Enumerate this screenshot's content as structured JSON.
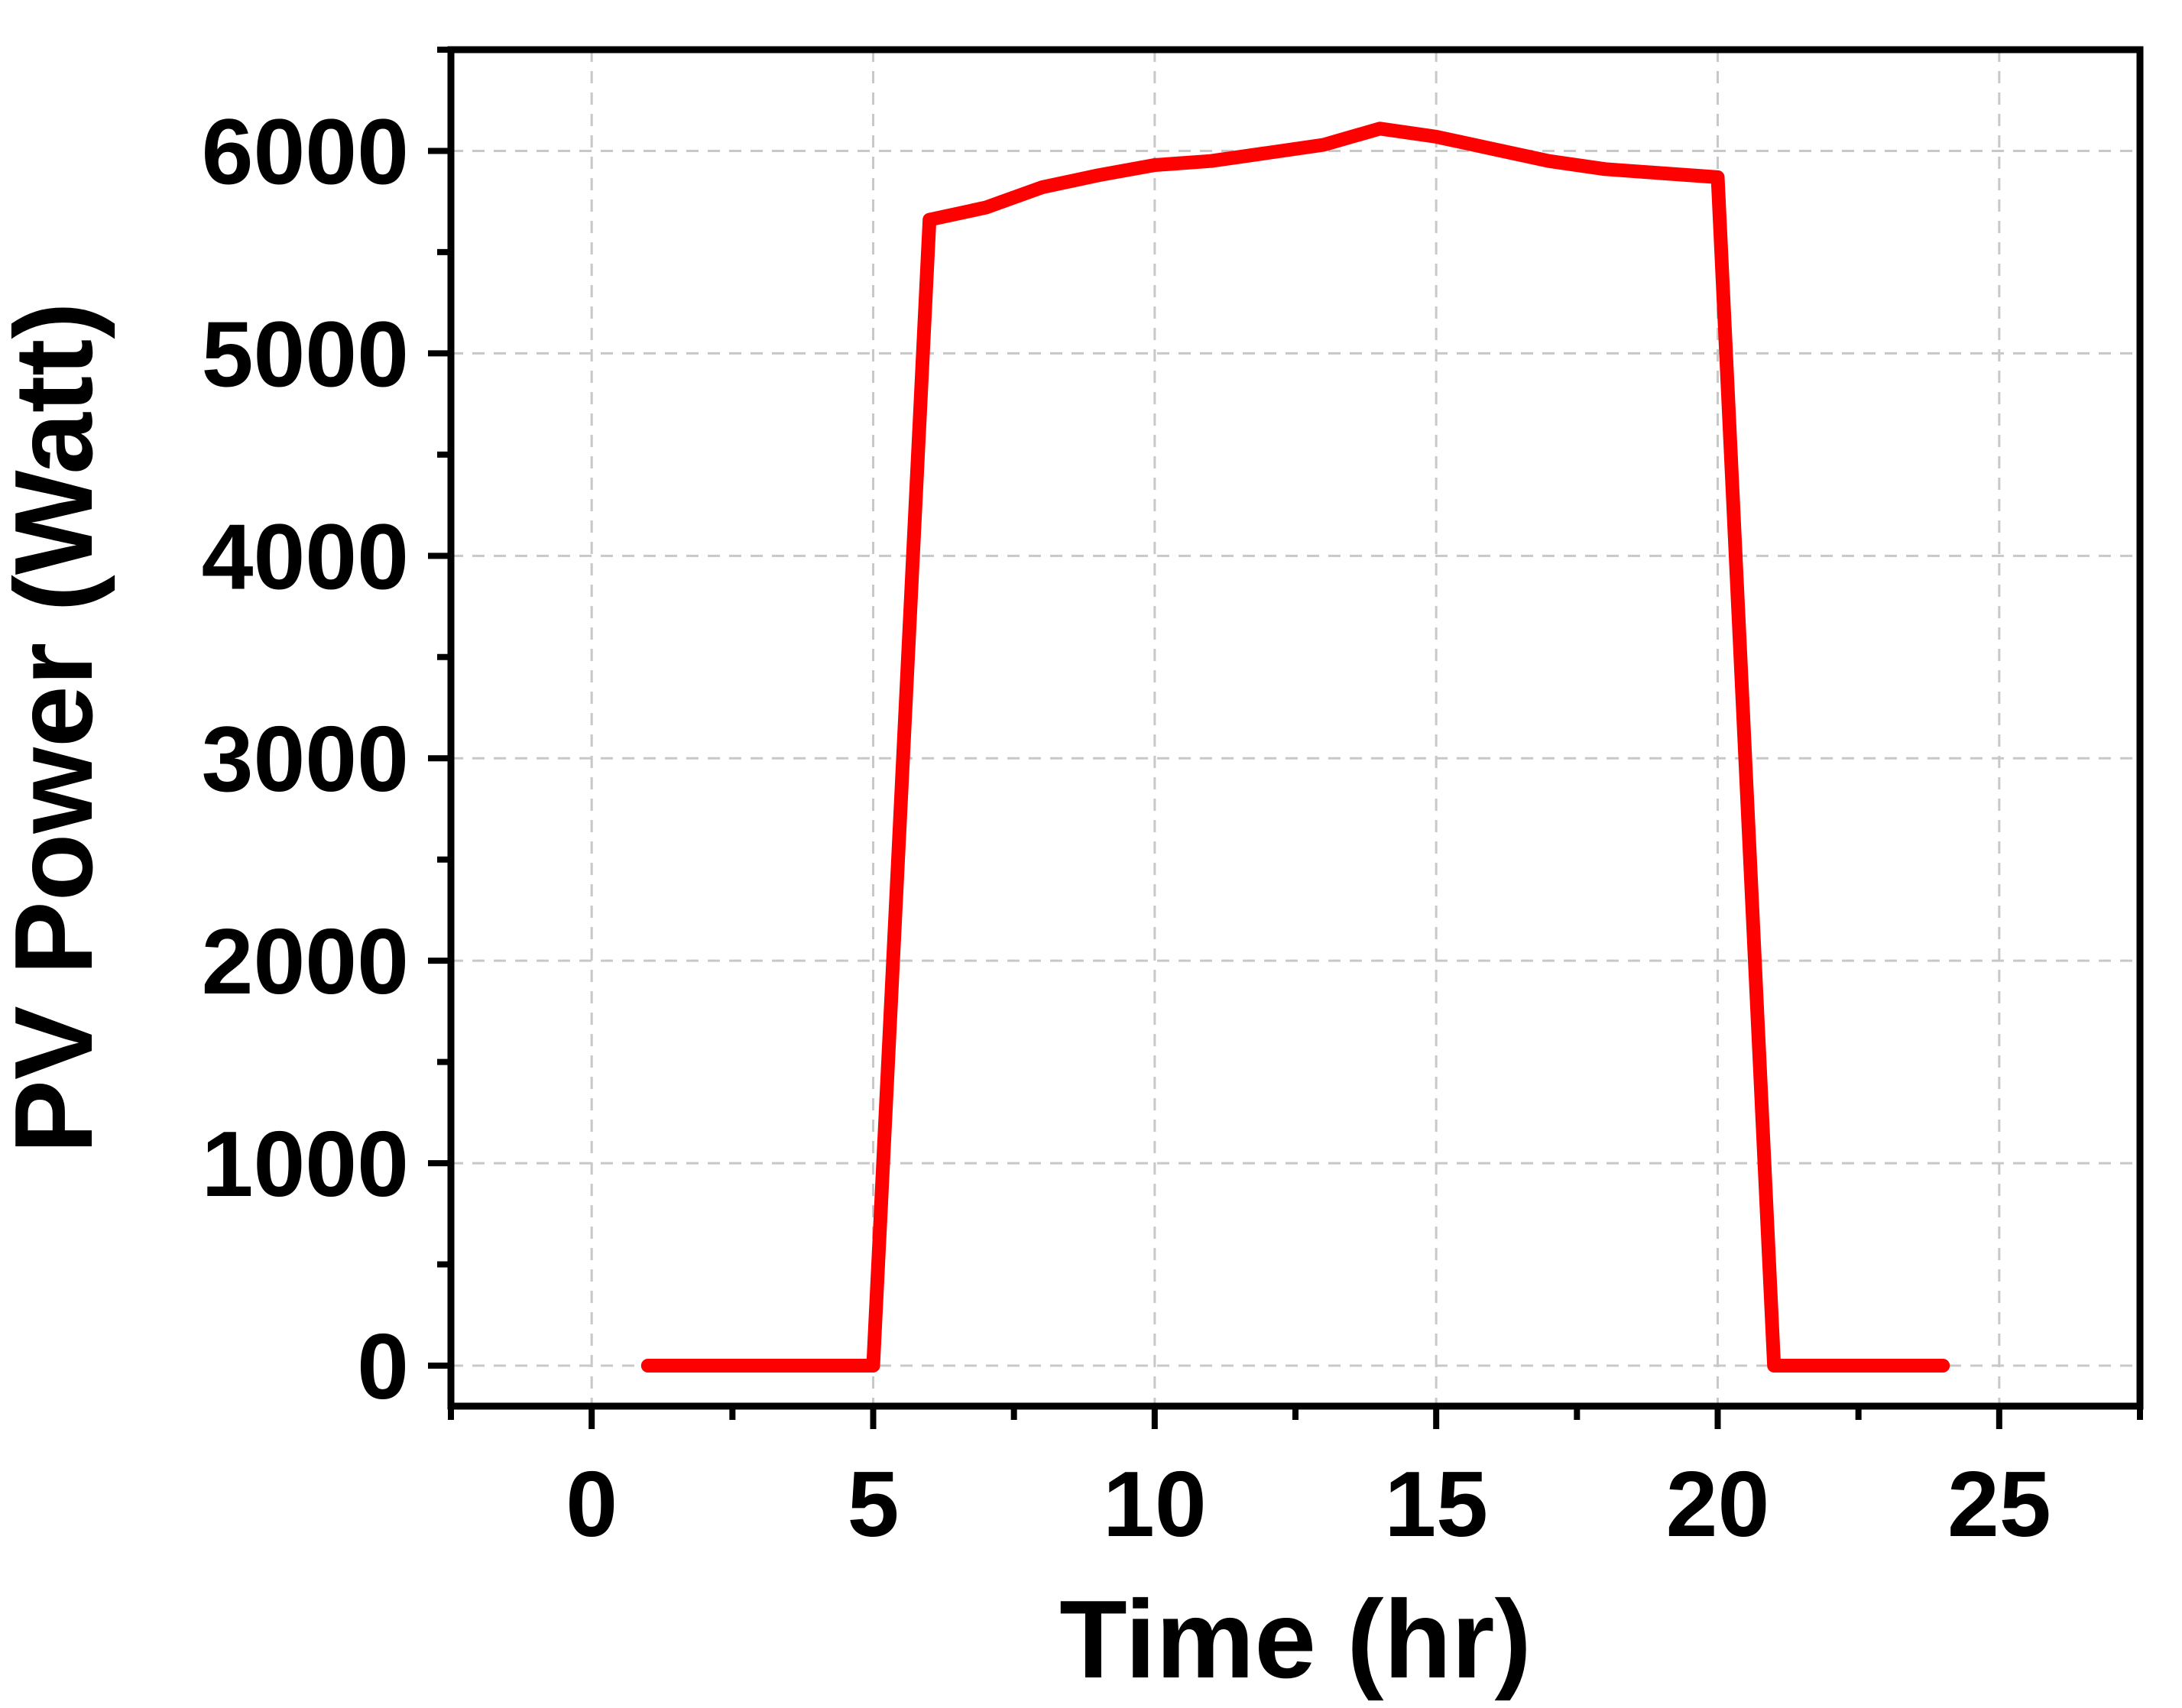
{
  "chart_data": {
    "type": "line",
    "title": "",
    "xlabel": "Time (hr)",
    "ylabel": "PV Power (Watt)",
    "xlim": [
      -2.5,
      27.5
    ],
    "ylim": [
      -200,
      6500
    ],
    "x_ticks": [
      0,
      5,
      10,
      15,
      20,
      25
    ],
    "x_tick_labels": [
      "0",
      "5",
      "10",
      "15",
      "20",
      "25"
    ],
    "y_ticks": [
      0,
      1000,
      2000,
      3000,
      4000,
      5000,
      6000
    ],
    "y_tick_labels": [
      "0",
      "1000",
      "2000",
      "3000",
      "4000",
      "5000",
      "6000"
    ],
    "grid": true,
    "legend": "none",
    "series": [
      {
        "color": "#ff0000",
        "x": [
          1,
          2,
          3,
          4,
          5,
          6,
          7,
          8,
          9,
          10,
          11,
          12,
          13,
          14,
          15,
          16,
          17,
          18,
          19,
          20,
          21,
          22,
          23,
          24
        ],
        "values": [
          0,
          0,
          0,
          0,
          0,
          5660,
          5720,
          5820,
          5880,
          5930,
          5950,
          5990,
          6030,
          6110,
          6070,
          6010,
          5950,
          5910,
          5890,
          5870,
          0,
          0,
          0,
          0
        ]
      }
    ]
  }
}
